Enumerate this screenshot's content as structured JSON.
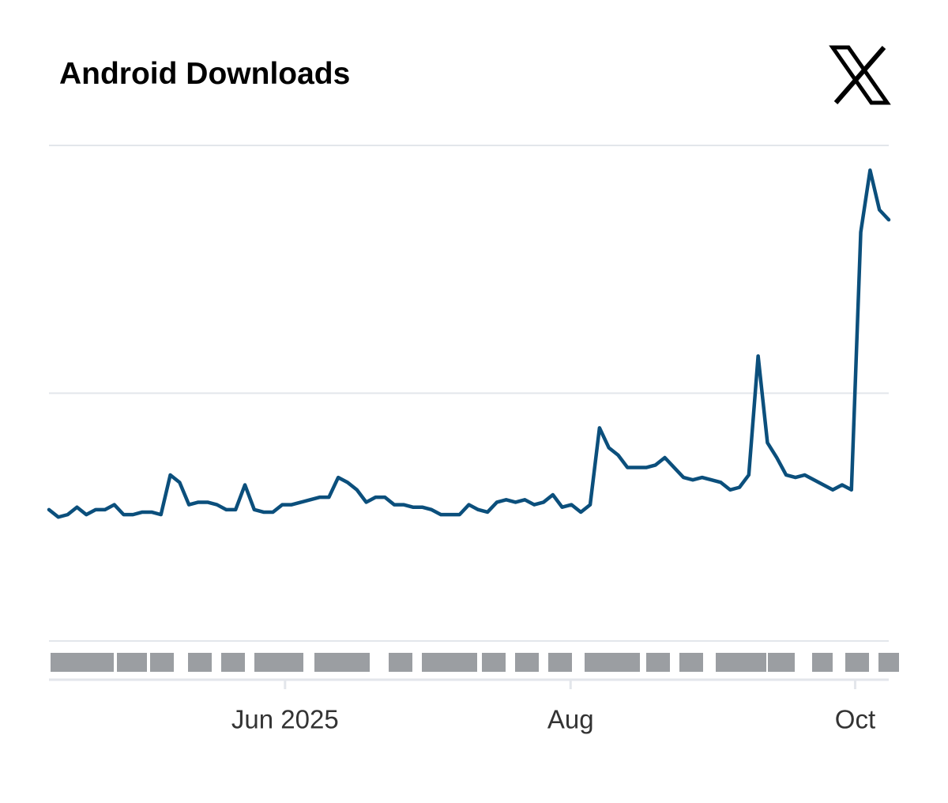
{
  "chart_data": {
    "type": "line",
    "title": "Android Downloads",
    "values": [
      0.53,
      0.5,
      0.51,
      0.54,
      0.51,
      0.53,
      0.53,
      0.55,
      0.51,
      0.51,
      0.52,
      0.52,
      0.51,
      0.67,
      0.64,
      0.55,
      0.56,
      0.56,
      0.55,
      0.53,
      0.53,
      0.63,
      0.53,
      0.52,
      0.52,
      0.55,
      0.55,
      0.56,
      0.57,
      0.58,
      0.58,
      0.66,
      0.64,
      0.61,
      0.56,
      0.58,
      0.58,
      0.55,
      0.55,
      0.54,
      0.54,
      0.53,
      0.51,
      0.51,
      0.51,
      0.55,
      0.53,
      0.52,
      0.56,
      0.57,
      0.56,
      0.57,
      0.55,
      0.56,
      0.59,
      0.54,
      0.55,
      0.52,
      0.55,
      0.86,
      0.78,
      0.75,
      0.7,
      0.7,
      0.7,
      0.71,
      0.74,
      0.7,
      0.66,
      0.65,
      0.66,
      0.65,
      0.64,
      0.61,
      0.62,
      0.67,
      1.15,
      0.8,
      0.74,
      0.67,
      0.66,
      0.67,
      0.65,
      0.63,
      0.61,
      0.63,
      0.61,
      1.65,
      1.9,
      1.74,
      1.7
    ],
    "color": "#0b4f7c",
    "xlim": [
      0,
      90
    ],
    "xticks": [
      {
        "value": 25.3,
        "label": "Jun 2025"
      },
      {
        "value": 55.9,
        "label": "Aug"
      },
      {
        "value": 86.4,
        "label": "Oct"
      }
    ],
    "ylim": [
      0,
      2
    ],
    "yticks": [
      0,
      1,
      2
    ],
    "grid": true
  }
}
